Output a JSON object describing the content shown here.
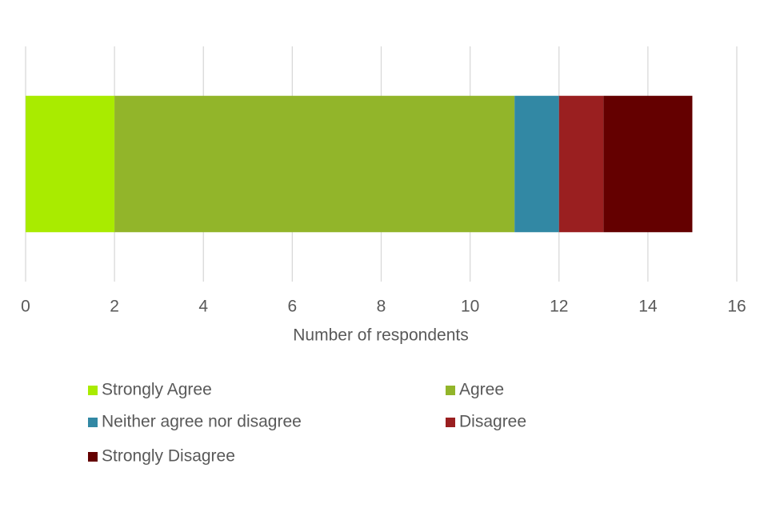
{
  "chart_data": {
    "type": "bar",
    "orientation": "horizontal",
    "stacked": true,
    "categories": [
      null
    ],
    "series": [
      {
        "name": "Strongly Agree",
        "color": "#a9eb00",
        "values": [
          2
        ]
      },
      {
        "name": "Agree",
        "color": "#92b52a",
        "values": [
          9
        ]
      },
      {
        "name": "Neither agree nor disagree",
        "color": "#3288a4",
        "values": [
          1
        ]
      },
      {
        "name": "Disagree",
        "color": "#9a1f20",
        "values": [
          1
        ]
      },
      {
        "name": "Strongly Disagree",
        "color": "#640000",
        "values": [
          2
        ]
      }
    ],
    "x_label": "Number of respondents",
    "xlim": [
      0,
      16
    ],
    "xticks": [
      0,
      2,
      4,
      6,
      8,
      10,
      12,
      14,
      16
    ],
    "grid": true,
    "legend": "bottom"
  }
}
